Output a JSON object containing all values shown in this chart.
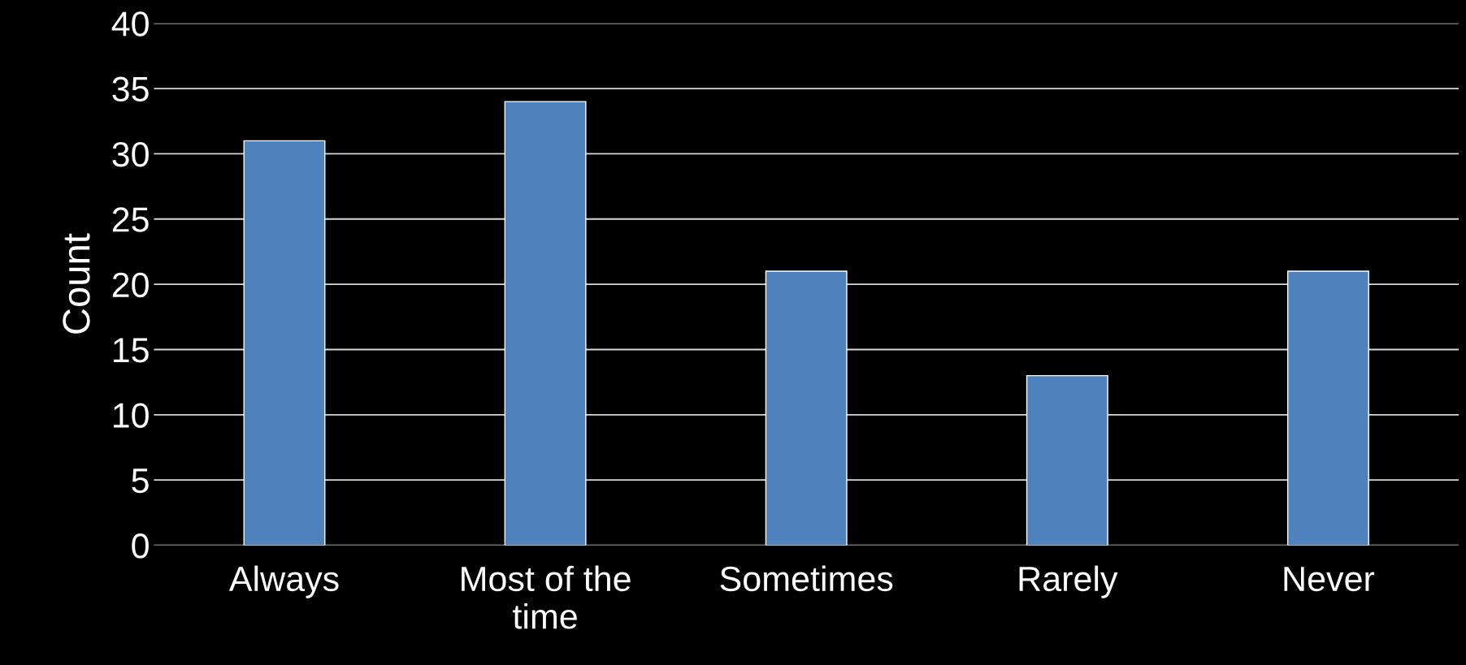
{
  "chart_data": {
    "type": "bar",
    "ylabel": "Count",
    "categories": [
      "Always",
      "Most of the time",
      "Sometimes",
      "Rarely",
      "Never"
    ],
    "values": [
      31,
      34,
      21,
      13,
      21
    ],
    "color": "#4f81bd",
    "ylim": [
      0,
      40
    ],
    "yticks": [
      0,
      5,
      10,
      15,
      20,
      25,
      30,
      35,
      40
    ],
    "grid": "y",
    "legend": false
  }
}
